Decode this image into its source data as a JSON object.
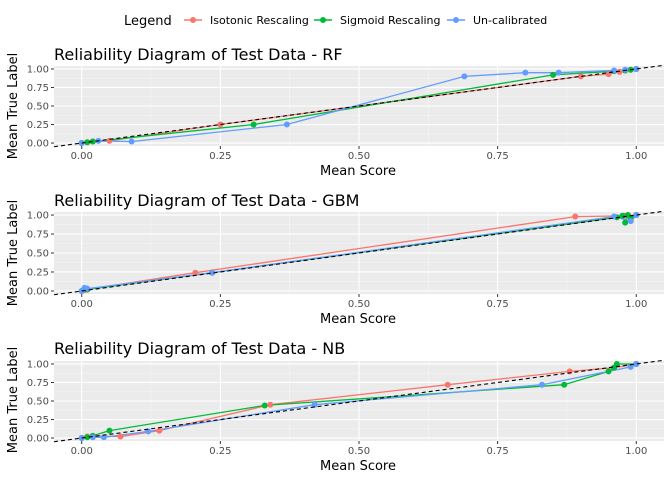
{
  "legend": {
    "title": "Legend",
    "items": [
      {
        "label": "Isotonic Rescaling",
        "color": "#F8766D"
      },
      {
        "label": "Sigmoid Rescaling",
        "color": "#00BA38"
      },
      {
        "label": "Un-calibrated",
        "color": "#619CFF"
      }
    ]
  },
  "chart_data": [
    {
      "type": "line",
      "title": "Reliability Diagram of Test Data - RF",
      "xlabel": "Mean Score",
      "ylabel": "Mean True Label",
      "xlim": [
        -0.05,
        1.05
      ],
      "ylim": [
        -0.04,
        1.04
      ],
      "x_ticks": [
        "0.00",
        "0.25",
        "0.50",
        "0.75",
        "1.00"
      ],
      "y_ticks": [
        "0.00",
        "0.25",
        "0.50",
        "0.75",
        "1.00"
      ],
      "grid": true,
      "reference_line": "y = x (dashed)",
      "series": [
        {
          "name": "Isotonic Rescaling",
          "color": "#F8766D",
          "x": [
            0.0,
            0.01,
            0.02,
            0.05,
            0.25,
            0.9,
            0.95,
            0.97,
            0.98,
            0.99,
            1.0
          ],
          "y": [
            0.0,
            0.01,
            0.02,
            0.03,
            0.25,
            0.9,
            0.93,
            0.96,
            0.98,
            0.99,
            1.0
          ]
        },
        {
          "name": "Sigmoid Rescaling",
          "color": "#00BA38",
          "x": [
            0.0,
            0.01,
            0.02,
            0.31,
            0.85,
            0.96,
            0.98,
            0.99,
            1.0
          ],
          "y": [
            0.0,
            0.01,
            0.02,
            0.25,
            0.92,
            0.97,
            0.98,
            0.99,
            1.0
          ]
        },
        {
          "name": "Un-calibrated",
          "color": "#619CFF",
          "x": [
            0.0,
            0.03,
            0.09,
            0.37,
            0.69,
            0.8,
            0.86,
            0.96,
            0.98,
            1.0
          ],
          "y": [
            0.0,
            0.03,
            0.02,
            0.25,
            0.9,
            0.95,
            0.95,
            0.98,
            0.99,
            1.0
          ]
        }
      ]
    },
    {
      "type": "line",
      "title": "Reliability Diagram of Test Data - GBM",
      "xlabel": "Mean Score",
      "ylabel": "Mean True Label",
      "xlim": [
        -0.05,
        1.05
      ],
      "ylim": [
        -0.04,
        1.04
      ],
      "x_ticks": [
        "0.00",
        "0.25",
        "0.50",
        "0.75",
        "1.00"
      ],
      "y_ticks": [
        "0.00",
        "0.25",
        "0.50",
        "0.75",
        "1.00"
      ],
      "grid": true,
      "reference_line": "y = x (dashed)",
      "series": [
        {
          "name": "Isotonic Rescaling",
          "color": "#F8766D",
          "x": [
            0.0,
            0.005,
            0.01,
            0.205,
            0.89,
            0.98,
            1.0
          ],
          "y": [
            0.0,
            0.01,
            0.02,
            0.24,
            0.98,
            0.99,
            1.0
          ]
        },
        {
          "name": "Sigmoid Rescaling",
          "color": "#00BA38",
          "x": [
            0.0,
            0.01,
            0.235,
            0.965,
            0.975,
            0.98,
            0.985,
            0.99,
            1.0
          ],
          "y": [
            0.0,
            0.02,
            0.24,
            0.97,
            0.99,
            0.9,
            1.0,
            0.96,
            1.0
          ]
        },
        {
          "name": "Un-calibrated",
          "color": "#619CFF",
          "x": [
            0.0,
            0.005,
            0.01,
            0.235,
            0.96,
            0.99,
            1.0
          ],
          "y": [
            0.0,
            0.04,
            0.03,
            0.24,
            0.98,
            0.92,
            1.0
          ]
        }
      ]
    },
    {
      "type": "line",
      "title": "Reliability Diagram of Test Data - NB",
      "xlabel": "Mean Score",
      "ylabel": "Mean True Label",
      "xlim": [
        -0.05,
        1.05
      ],
      "ylim": [
        -0.04,
        1.04
      ],
      "x_ticks": [
        "0.00",
        "0.25",
        "0.50",
        "0.75",
        "1.00"
      ],
      "y_ticks": [
        "0.00",
        "0.25",
        "0.50",
        "0.75",
        "1.00"
      ],
      "grid": true,
      "reference_line": "y = x (dashed)",
      "series": [
        {
          "name": "Isotonic Rescaling",
          "color": "#F8766D",
          "x": [
            0.0,
            0.01,
            0.02,
            0.07,
            0.14,
            0.34,
            0.66,
            0.88,
            0.96,
            1.0
          ],
          "y": [
            0.0,
            0.02,
            0.03,
            0.02,
            0.1,
            0.45,
            0.72,
            0.9,
            0.95,
            1.0
          ]
        },
        {
          "name": "Sigmoid Rescaling",
          "color": "#00BA38",
          "x": [
            0.0,
            0.01,
            0.02,
            0.05,
            0.33,
            0.87,
            0.95,
            0.96,
            0.965,
            1.0
          ],
          "y": [
            0.0,
            0.01,
            0.03,
            0.1,
            0.44,
            0.72,
            0.9,
            0.95,
            1.0,
            1.0
          ]
        },
        {
          "name": "Un-calibrated",
          "color": "#619CFF",
          "x": [
            0.0,
            0.02,
            0.04,
            0.12,
            0.42,
            0.83,
            0.99,
            1.0
          ],
          "y": [
            0.0,
            0.01,
            0.01,
            0.09,
            0.45,
            0.72,
            0.96,
            1.0
          ]
        }
      ]
    }
  ]
}
